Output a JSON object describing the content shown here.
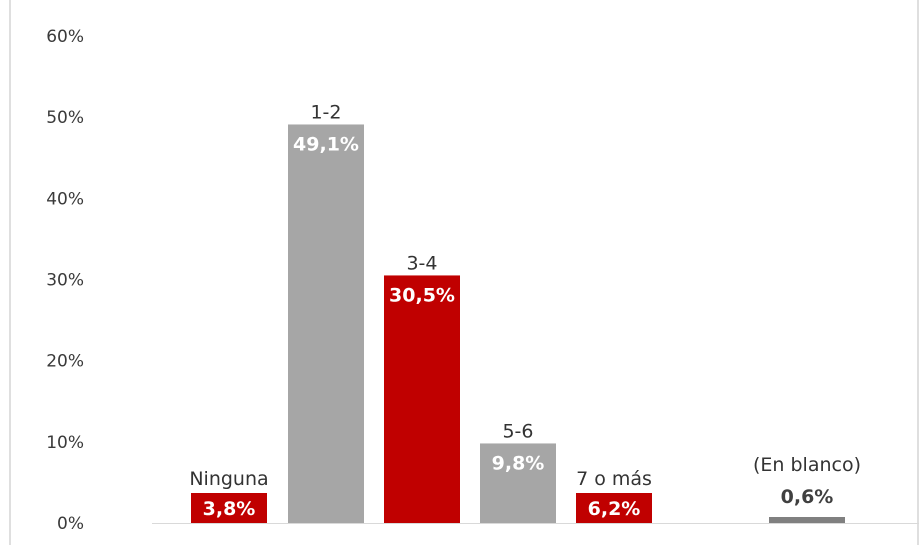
{
  "chart_data": {
    "type": "bar",
    "categories": [
      "Ninguna",
      "1-2",
      "3-4",
      "5-6",
      "7 o más",
      "(En blanco)"
    ],
    "values": [
      3.8,
      49.1,
      30.5,
      9.8,
      6.2,
      0.6
    ],
    "value_labels": [
      "3,8%",
      "49,1%",
      "30,5%",
      "9,8%",
      "6,2%",
      "0,6%"
    ],
    "bar_colors": [
      "#c00000",
      "#a6a6a6",
      "#c00000",
      "#a6a6a6",
      "#c00000",
      "#808080"
    ],
    "value_label_colors": [
      "#ffffff",
      "#ffffff",
      "#ffffff",
      "#ffffff",
      "#ffffff",
      "#404040"
    ],
    "ylim": [
      0,
      60
    ],
    "yticks": [
      0,
      10,
      20,
      30,
      40,
      50,
      60
    ],
    "ytick_labels": [
      "0%",
      "10%",
      "20%",
      "30%",
      "40%",
      "50%",
      "60%"
    ],
    "grid": false,
    "legend": "none",
    "axis_color": "#bfbfbf"
  }
}
